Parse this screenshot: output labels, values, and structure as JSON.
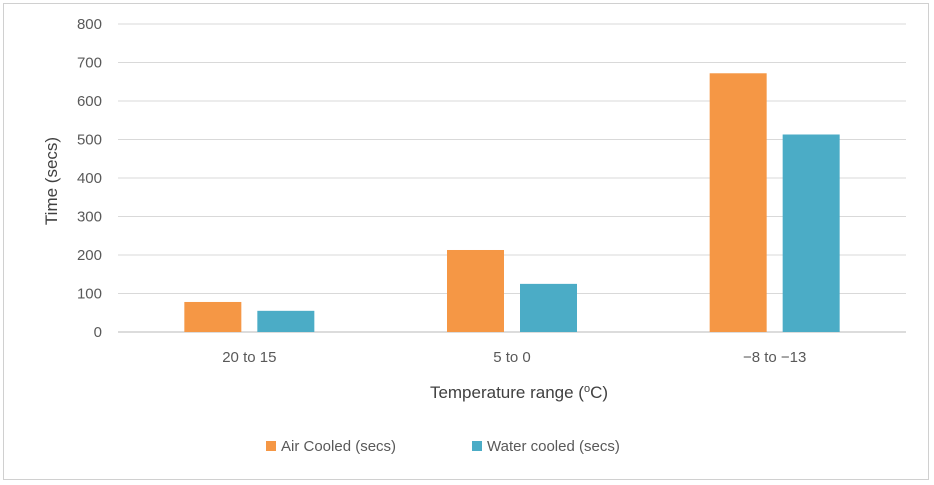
{
  "chart_data": {
    "type": "bar",
    "title": "",
    "xlabel": "Temperature range (",
    "xlabel_super": "o",
    "xlabel_suffix": "C)",
    "ylabel": "Time (secs)",
    "ylim": [
      0,
      800
    ],
    "yticks": [
      "0",
      "100",
      "200",
      "300",
      "400",
      "500",
      "600",
      "700",
      "800"
    ],
    "ytick_values": [
      0,
      100,
      200,
      300,
      400,
      500,
      600,
      700,
      800
    ],
    "categories": [
      "20 to 15",
      "5 to 0",
      "−8 to −13"
    ],
    "series": [
      {
        "name": "Air Cooled (secs)",
        "color": "#f59745",
        "values": [
          78,
          213,
          672
        ]
      },
      {
        "name": "Water cooled (secs)",
        "color": "#4bacc6",
        "values": [
          55,
          125,
          513
        ]
      }
    ],
    "grid": true,
    "legend_position": "bottom"
  }
}
